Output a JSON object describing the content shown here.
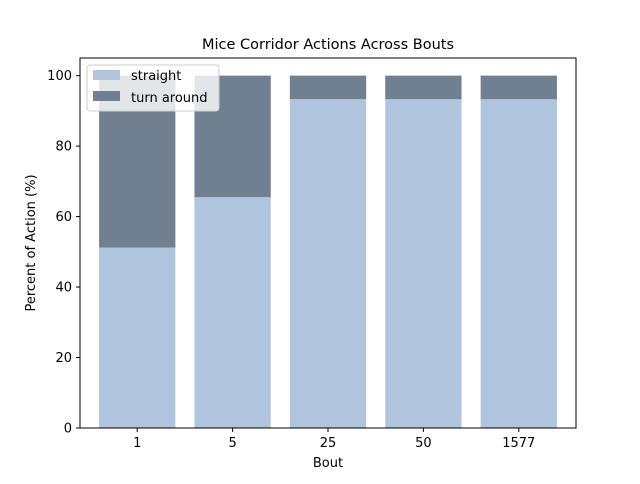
{
  "chart_data": {
    "type": "bar",
    "stacked": true,
    "title": "Mice Corridor Actions Across Bouts",
    "xlabel": "Bout",
    "ylabel": "Percent of Action (%)",
    "categories": [
      "1",
      "5",
      "25",
      "50",
      "1577"
    ],
    "ylim": [
      0,
      105
    ],
    "yticks": [
      0,
      20,
      40,
      60,
      80,
      100
    ],
    "grid": false,
    "legend_position": "top-left",
    "series": [
      {
        "name": "straight",
        "color": "#b0c4de",
        "values": [
          51.2,
          65.5,
          93.3,
          93.3,
          93.3
        ]
      },
      {
        "name": "turn around",
        "color": "#708090",
        "values": [
          48.8,
          34.5,
          6.7,
          6.7,
          6.7
        ]
      }
    ]
  }
}
